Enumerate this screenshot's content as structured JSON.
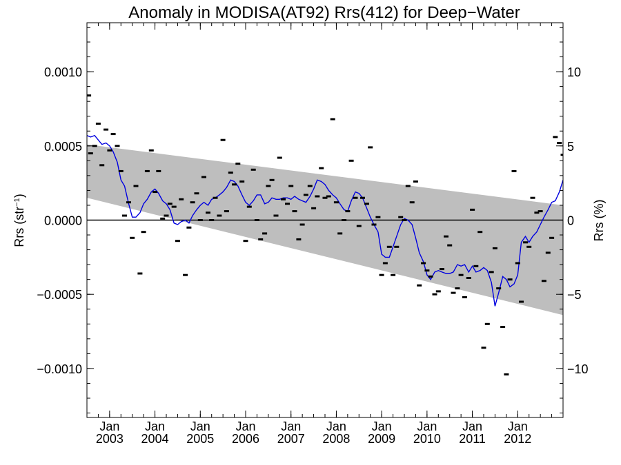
{
  "chart_data": {
    "type": "line",
    "title": "Anomaly in MODISA(AT92) Rrs(412) for Deep−Water",
    "ylabel_left": "Rrs (str",
    "ylabel_left_sup": "−1",
    "ylabel_left_close": ")",
    "ylabel_right": "Rrs (%)",
    "x_range": [
      2002.5,
      2013.0
    ],
    "ylim_left": [
      -0.00133,
      0.00133
    ],
    "ylim_right": [
      -13.3,
      13.3
    ],
    "left_ticks": [
      {
        "v": 0.001,
        "label": "0.0010"
      },
      {
        "v": 0.0005,
        "label": "0.0005"
      },
      {
        "v": 0.0,
        "label": "0.0000"
      },
      {
        "v": -0.0005,
        "label": "−0.0005"
      },
      {
        "v": -0.001,
        "label": "−0.0010"
      }
    ],
    "right_ticks": [
      {
        "v": 10,
        "label": "10"
      },
      {
        "v": 5,
        "label": "5"
      },
      {
        "v": 0,
        "label": "0"
      },
      {
        "v": -5,
        "label": "−5"
      },
      {
        "v": -10,
        "label": "−10"
      }
    ],
    "x_ticks": [
      {
        "v": 2003.0,
        "month": "Jan",
        "year": "2003"
      },
      {
        "v": 2004.0,
        "month": "Jan",
        "year": "2004"
      },
      {
        "v": 2005.0,
        "month": "Jan",
        "year": "2005"
      },
      {
        "v": 2006.0,
        "month": "Jan",
        "year": "2006"
      },
      {
        "v": 2007.0,
        "month": "Jan",
        "year": "2007"
      },
      {
        "v": 2008.0,
        "month": "Jan",
        "year": "2008"
      },
      {
        "v": 2009.0,
        "month": "Jan",
        "year": "2009"
      },
      {
        "v": 2010.0,
        "month": "Jan",
        "year": "2010"
      },
      {
        "v": 2011.0,
        "month": "Jan",
        "year": "2011"
      },
      {
        "v": 2012.0,
        "month": "Jan",
        "year": "2012"
      }
    ],
    "zero_line": 0.0,
    "trend_band": {
      "color": "#bebebe",
      "upper": {
        "x": [
          2002.5,
          2013.0
        ],
        "y": [
          0.00051,
          0.0001
        ]
      },
      "lower": {
        "x": [
          2002.5,
          2013.0
        ],
        "y": [
          0.00015,
          -0.00064
        ]
      }
    },
    "monthly_anomaly": {
      "color": "#000000",
      "points": [
        [
          2002.54,
          0.00084
        ],
        [
          2002.58,
          0.00045
        ],
        [
          2002.67,
          0.0005
        ],
        [
          2002.75,
          0.00065
        ],
        [
          2002.83,
          0.00037
        ],
        [
          2002.92,
          0.00061
        ],
        [
          2003.0,
          0.00047
        ],
        [
          2003.08,
          0.00058
        ],
        [
          2003.17,
          0.0005
        ],
        [
          2003.25,
          0.00033
        ],
        [
          2003.33,
          3e-05
        ],
        [
          2003.42,
          0.00012
        ],
        [
          2003.5,
          -0.00012
        ],
        [
          2003.58,
          0.00023
        ],
        [
          2003.67,
          -0.00036
        ],
        [
          2003.75,
          -8e-05
        ],
        [
          2003.83,
          0.00033
        ],
        [
          2003.92,
          0.00047
        ],
        [
          2004.0,
          0.00019
        ],
        [
          2004.08,
          0.00033
        ],
        [
          2004.17,
          1e-05
        ],
        [
          2004.25,
          3e-05
        ],
        [
          2004.33,
          0.00011
        ],
        [
          2004.42,
          9e-05
        ],
        [
          2004.5,
          -0.00014
        ],
        [
          2004.58,
          0.00014
        ],
        [
          2004.67,
          -0.00037
        ],
        [
          2004.75,
          -5e-05
        ],
        [
          2004.83,
          0.00012
        ],
        [
          2004.92,
          0.00018
        ],
        [
          2005.0,
          0.0
        ],
        [
          2005.08,
          0.00029
        ],
        [
          2005.17,
          5e-05
        ],
        [
          2005.25,
          0.0
        ],
        [
          2005.33,
          0.00015
        ],
        [
          2005.42,
          3e-05
        ],
        [
          2005.5,
          0.00054
        ],
        [
          2005.58,
          6e-05
        ],
        [
          2005.67,
          0.00032
        ],
        [
          2005.75,
          0.00024
        ],
        [
          2005.83,
          0.00038
        ],
        [
          2005.92,
          0.00026
        ],
        [
          2006.0,
          -0.00014
        ],
        [
          2006.08,
          9e-05
        ],
        [
          2006.17,
          0.00034
        ],
        [
          2006.25,
          0.0
        ],
        [
          2006.33,
          -0.00013
        ],
        [
          2006.42,
          -9e-05
        ],
        [
          2006.5,
          0.00023
        ],
        [
          2006.58,
          0.00027
        ],
        [
          2006.67,
          3e-05
        ],
        [
          2006.75,
          0.00042
        ],
        [
          2006.83,
          0.00014
        ],
        [
          2006.92,
          0.00011
        ],
        [
          2007.0,
          0.00023
        ],
        [
          2007.08,
          6e-05
        ],
        [
          2007.17,
          -0.00013
        ],
        [
          2007.25,
          -3e-05
        ],
        [
          2007.33,
          0.00017
        ],
        [
          2007.42,
          0.00023
        ],
        [
          2007.5,
          8e-05
        ],
        [
          2007.58,
          0.00016
        ],
        [
          2007.67,
          0.00035
        ],
        [
          2007.75,
          0.00015
        ],
        [
          2007.83,
          0.00016
        ],
        [
          2007.92,
          0.00068
        ],
        [
          2008.0,
          0.00012
        ],
        [
          2008.08,
          -9e-05
        ],
        [
          2008.17,
          0.0
        ],
        [
          2008.25,
          6e-05
        ],
        [
          2008.33,
          0.0004
        ],
        [
          2008.42,
          0.00015
        ],
        [
          2008.5,
          -4e-05
        ],
        [
          2008.58,
          0.00015
        ],
        [
          2008.67,
          0.00011
        ],
        [
          2008.75,
          0.00049
        ],
        [
          2008.83,
          -3e-05
        ],
        [
          2008.92,
          2e-05
        ],
        [
          2009.0,
          -0.00037
        ],
        [
          2009.08,
          -0.00029
        ],
        [
          2009.17,
          -0.00018
        ],
        [
          2009.25,
          -0.00037
        ],
        [
          2009.33,
          -0.00018
        ],
        [
          2009.42,
          2e-05
        ],
        [
          2009.5,
          0.0
        ],
        [
          2009.58,
          0.00023
        ],
        [
          2009.67,
          0.00012
        ],
        [
          2009.75,
          0.00026
        ],
        [
          2009.83,
          -0.00044
        ],
        [
          2009.92,
          -0.00029
        ],
        [
          2010.0,
          -0.00034
        ],
        [
          2010.08,
          -0.00038
        ],
        [
          2010.17,
          -0.0005
        ],
        [
          2010.25,
          -0.00048
        ],
        [
          2010.33,
          -0.00033
        ],
        [
          2010.42,
          -0.00011
        ],
        [
          2010.5,
          -0.00017
        ],
        [
          2010.58,
          -0.00049
        ],
        [
          2010.67,
          -0.00046
        ],
        [
          2010.75,
          -0.00037
        ],
        [
          2010.83,
          -0.00052
        ],
        [
          2010.92,
          -0.00039
        ],
        [
          2011.0,
          7e-05
        ],
        [
          2011.08,
          -0.00031
        ],
        [
          2011.17,
          -8e-05
        ],
        [
          2011.25,
          -0.00086
        ],
        [
          2011.33,
          -0.0007
        ],
        [
          2011.42,
          -0.00035
        ],
        [
          2011.5,
          -0.00019
        ],
        [
          2011.58,
          -0.00046
        ],
        [
          2011.67,
          -0.00072
        ],
        [
          2011.75,
          -0.00104
        ],
        [
          2011.83,
          -0.0004
        ],
        [
          2011.92,
          0.00033
        ],
        [
          2012.0,
          -0.00029
        ],
        [
          2012.08,
          -0.00055
        ],
        [
          2012.17,
          -0.00015
        ],
        [
          2012.25,
          -0.00018
        ],
        [
          2012.33,
          0.00015
        ],
        [
          2012.42,
          5e-05
        ],
        [
          2012.5,
          6e-05
        ],
        [
          2012.58,
          -0.00041
        ],
        [
          2012.67,
          -0.00022
        ],
        [
          2012.75,
          -0.00012
        ],
        [
          2012.83,
          0.00056
        ],
        [
          2012.92,
          0.00052
        ],
        [
          2013.0,
          0.00044
        ]
      ]
    },
    "running_mean": {
      "color": "#0000e0",
      "points": [
        [
          2002.5,
          0.00057
        ],
        [
          2002.58,
          0.00056
        ],
        [
          2002.67,
          0.00057
        ],
        [
          2002.75,
          0.00054
        ],
        [
          2002.83,
          0.00051
        ],
        [
          2002.92,
          0.00052
        ],
        [
          2003.0,
          0.0005
        ],
        [
          2003.08,
          0.00046
        ],
        [
          2003.17,
          0.00039
        ],
        [
          2003.25,
          0.00027
        ],
        [
          2003.33,
          0.00023
        ],
        [
          2003.42,
          0.00011
        ],
        [
          2003.5,
          2e-05
        ],
        [
          2003.58,
          2e-05
        ],
        [
          2003.67,
          5e-05
        ],
        [
          2003.75,
          0.00011
        ],
        [
          2003.83,
          0.00014
        ],
        [
          2003.92,
          0.00019
        ],
        [
          2004.0,
          0.00021
        ],
        [
          2004.08,
          0.00018
        ],
        [
          2004.17,
          0.00013
        ],
        [
          2004.25,
          0.00011
        ],
        [
          2004.33,
          7e-05
        ],
        [
          2004.42,
          -2e-05
        ],
        [
          2004.5,
          -3e-05
        ],
        [
          2004.58,
          -1e-05
        ],
        [
          2004.67,
          0.0
        ],
        [
          2004.75,
          -2e-05
        ],
        [
          2004.83,
          3e-05
        ],
        [
          2004.92,
          7e-05
        ],
        [
          2005.0,
          0.0001
        ],
        [
          2005.08,
          0.00012
        ],
        [
          2005.17,
          0.0001
        ],
        [
          2005.25,
          0.00014
        ],
        [
          2005.33,
          0.00015
        ],
        [
          2005.42,
          0.00017
        ],
        [
          2005.5,
          0.00019
        ],
        [
          2005.58,
          0.00022
        ],
        [
          2005.67,
          0.00027
        ],
        [
          2005.75,
          0.00026
        ],
        [
          2005.83,
          0.00023
        ],
        [
          2005.92,
          0.00017
        ],
        [
          2006.0,
          0.00012
        ],
        [
          2006.08,
          0.0001
        ],
        [
          2006.17,
          0.00013
        ],
        [
          2006.25,
          0.00017
        ],
        [
          2006.33,
          0.00017
        ],
        [
          2006.42,
          0.00011
        ],
        [
          2006.5,
          0.00012
        ],
        [
          2006.58,
          0.00015
        ],
        [
          2006.67,
          0.00014
        ],
        [
          2006.75,
          0.00014
        ],
        [
          2006.83,
          0.00015
        ],
        [
          2006.92,
          0.00015
        ],
        [
          2007.0,
          0.00014
        ],
        [
          2007.08,
          0.00016
        ],
        [
          2007.17,
          0.00014
        ],
        [
          2007.25,
          0.00013
        ],
        [
          2007.33,
          0.00012
        ],
        [
          2007.42,
          0.00016
        ],
        [
          2007.5,
          0.00021
        ],
        [
          2007.58,
          0.00027
        ],
        [
          2007.67,
          0.00026
        ],
        [
          2007.75,
          0.00024
        ],
        [
          2007.83,
          0.0002
        ],
        [
          2007.92,
          0.00017
        ],
        [
          2008.0,
          0.00015
        ],
        [
          2008.08,
          0.00011
        ],
        [
          2008.17,
          7e-05
        ],
        [
          2008.25,
          6e-05
        ],
        [
          2008.33,
          0.00013
        ],
        [
          2008.42,
          0.00019
        ],
        [
          2008.5,
          0.00018
        ],
        [
          2008.58,
          0.00015
        ],
        [
          2008.67,
          8e-05
        ],
        [
          2008.75,
          2e-05
        ],
        [
          2008.83,
          -3e-05
        ],
        [
          2008.92,
          -8e-05
        ],
        [
          2009.0,
          -0.00023
        ],
        [
          2009.08,
          -0.00025
        ],
        [
          2009.17,
          -0.00025
        ],
        [
          2009.25,
          -0.00018
        ],
        [
          2009.33,
          -0.00011
        ],
        [
          2009.42,
          -3e-05
        ],
        [
          2009.5,
          1e-05
        ],
        [
          2009.58,
          0.0
        ],
        [
          2009.67,
          -3e-05
        ],
        [
          2009.75,
          -0.00012
        ],
        [
          2009.83,
          -0.00022
        ],
        [
          2009.92,
          -0.00028
        ],
        [
          2010.0,
          -0.00037
        ],
        [
          2010.08,
          -0.0004
        ],
        [
          2010.17,
          -0.00035
        ],
        [
          2010.25,
          -0.00034
        ],
        [
          2010.33,
          -0.00035
        ],
        [
          2010.42,
          -0.00036
        ],
        [
          2010.5,
          -0.00036
        ],
        [
          2010.58,
          -0.00035
        ],
        [
          2010.67,
          -0.0003
        ],
        [
          2010.75,
          -0.00031
        ],
        [
          2010.83,
          -0.0003
        ],
        [
          2010.92,
          -0.00035
        ],
        [
          2011.0,
          -0.00031
        ],
        [
          2011.08,
          -0.00035
        ],
        [
          2011.17,
          -0.00034
        ],
        [
          2011.25,
          -0.00032
        ],
        [
          2011.33,
          -0.00034
        ],
        [
          2011.42,
          -0.00042
        ],
        [
          2011.5,
          -0.00058
        ],
        [
          2011.58,
          -0.00049
        ],
        [
          2011.67,
          -0.00038
        ],
        [
          2011.75,
          -0.0004
        ],
        [
          2011.83,
          -0.00045
        ],
        [
          2011.92,
          -0.00043
        ],
        [
          2012.0,
          -0.00037
        ],
        [
          2012.08,
          -0.00015
        ],
        [
          2012.17,
          -0.00011
        ],
        [
          2012.25,
          -0.00015
        ],
        [
          2012.33,
          -0.00011
        ],
        [
          2012.42,
          -8e-05
        ],
        [
          2012.5,
          -3e-05
        ],
        [
          2012.58,
          2e-05
        ],
        [
          2012.67,
          7e-05
        ],
        [
          2012.75,
          0.00012
        ],
        [
          2012.83,
          0.00013
        ],
        [
          2012.92,
          0.00019
        ],
        [
          2013.0,
          0.00027
        ]
      ]
    }
  }
}
